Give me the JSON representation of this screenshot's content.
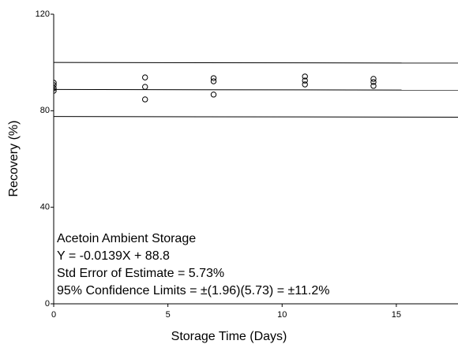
{
  "chart_data": {
    "type": "scatter",
    "x_label": "Storage Time (Days)",
    "y_label": "Recovery (%)",
    "xlim": [
      0,
      17.7
    ],
    "ylim": [
      0,
      120
    ],
    "xticks": [
      0,
      5,
      10,
      15
    ],
    "yticks": [
      0,
      40,
      80,
      120
    ],
    "color": "#000000",
    "points": {
      "x": [
        0,
        0,
        0,
        0,
        4,
        4,
        4,
        7,
        7,
        7,
        11,
        11,
        11,
        14,
        14,
        14
      ],
      "values": [
        91.6,
        90.6,
        89.3,
        88.3,
        93.8,
        89.9,
        84.7,
        93.5,
        92.2,
        86.7,
        94.2,
        92.5,
        90.9,
        93.2,
        91.9,
        90.3
      ]
    },
    "lines": [
      {
        "x": [
          0,
          17.7
        ],
        "values": [
          100,
          99.75
        ]
      },
      {
        "x": [
          0,
          17.7
        ],
        "values": [
          88.8,
          88.55
        ]
      },
      {
        "x": [
          0,
          17.7
        ],
        "values": [
          77.6,
          77.35
        ]
      }
    ],
    "annotations": [
      "Acetoin Ambient Storage",
      "Y = -0.0139X + 88.8",
      "Std Error of Estimate = 5.73%",
      "95% Confidence Limits = ±(1.96)(5.73) = ±11.2%"
    ]
  }
}
